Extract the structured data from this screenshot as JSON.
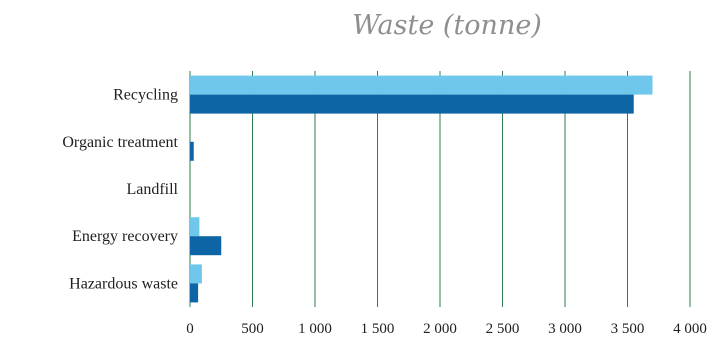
{
  "chart_data": {
    "type": "bar",
    "orientation": "horizontal",
    "title": "Waste (tonne)",
    "xlabel": "",
    "ylabel": "",
    "categories": [
      "Recycling",
      "Organic treatment",
      "Landfill",
      "Energy recovery",
      "Hazardous waste"
    ],
    "series": [
      {
        "color": "#6fc8ec",
        "values": [
          3700,
          0,
          0,
          75,
          95
        ]
      },
      {
        "color": "#0e65a5",
        "values": [
          3550,
          30,
          0,
          250,
          65
        ]
      }
    ],
    "xlim": [
      0,
      4000
    ],
    "xticks": [
      0,
      500,
      1000,
      1500,
      2000,
      2500,
      3000,
      3500,
      4000
    ],
    "xtick_labels": [
      "0",
      "500",
      "1 000",
      "1 500",
      "2 000",
      "2 500",
      "3 000",
      "3 500",
      "4 000"
    ],
    "grid": true,
    "grid_color": "#2e7d4a",
    "legend": "none"
  }
}
